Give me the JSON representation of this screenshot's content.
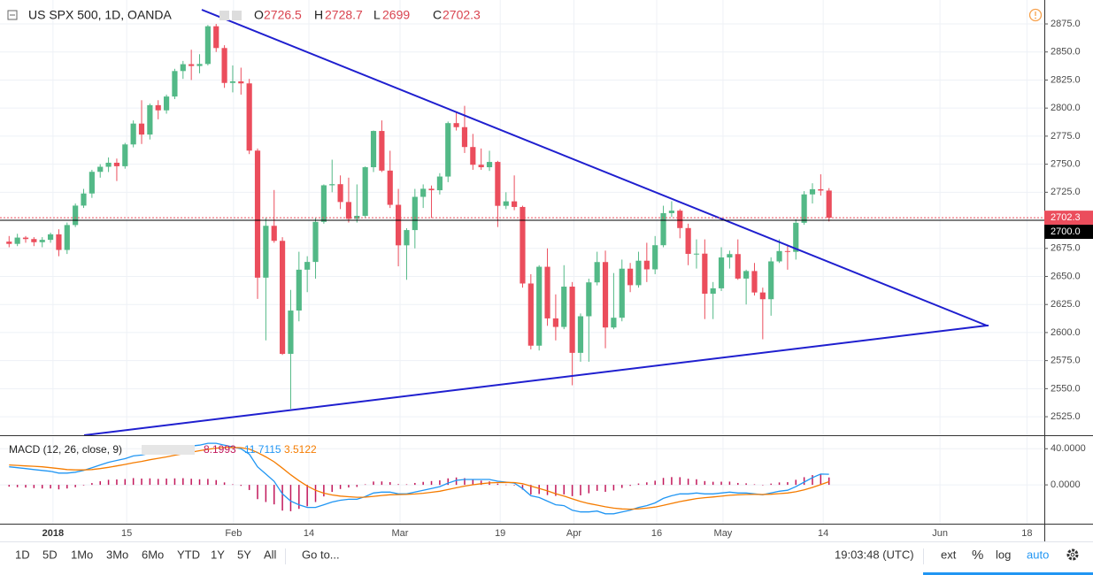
{
  "chart_data": {
    "type": "candlestick",
    "title": "US SPX 500, 1D, OANDA",
    "ohlc_labels": [
      "O",
      "H",
      "L",
      "C"
    ],
    "up_color": "#53b987",
    "down_color": "#eb4d5c",
    "open": [
      2681,
      2679.0,
      2684.6,
      2683.3,
      2680.5,
      2682.6,
      2687.5,
      2673.6,
      2695.8,
      2713.1,
      2723.9,
      2743.2,
      2747.7,
      2751.3,
      2748.2,
      2767.6,
      2786.2,
      2776.4,
      2802.6,
      2798.0,
      2810.3,
      2833.0,
      2839.1,
      2837.5,
      2839.3,
      2872.9,
      2853.5,
      2822.4,
      2823.8,
      2822.0,
      2762.1,
      2648.9,
      2695.1,
      2681.7,
      2581.0,
      2619.6,
      2656.0,
      2662.9,
      2698.6,
      2731.2,
      2732.2,
      2716.3,
      2701.3,
      2704.0,
      2747.3,
      2779.6,
      2744.3,
      2713.8,
      2677.7,
      2691.3,
      2720.9,
      2728.1,
      2726.8,
      2739.0,
      2786.6,
      2783.0,
      2765.3,
      2749.5,
      2747.3,
      2752.0,
      2712.9,
      2716.9,
      2711.9,
      2643.7,
      2588.3,
      2658.6,
      2612.6,
      2605.0,
      2640.9,
      2581.9,
      2614.5,
      2644.7,
      2662.8,
      2604.5,
      2613.2,
      2656.9,
      2642.2,
      2664.0,
      2656.3,
      2677.8,
      2706.4,
      2708.6,
      2693.1,
      2670.1,
      2670.3,
      2634.6,
      2639.4,
      2666.9,
      2669.9,
      2648.1,
      2654.8,
      2635.7,
      2629.7,
      2663.4,
      2672.6,
      2671.9,
      2697.8,
      2723.1,
      2727.7,
      2726.5
    ],
    "high": [
      2686,
      2688,
      2686,
      2685,
      2685,
      2689,
      2692,
      2698,
      2715,
      2728,
      2745,
      2750,
      2756,
      2755,
      2769,
      2789,
      2807,
      2804,
      2807,
      2812,
      2835,
      2842,
      2852,
      2848,
      2874,
      2875,
      2856,
      2838,
      2836,
      2826,
      2764,
      2702,
      2727,
      2685,
      2638,
      2672,
      2668,
      2702,
      2732,
      2754,
      2740,
      2738,
      2732,
      2748,
      2780,
      2789,
      2762,
      2728,
      2693,
      2728,
      2732,
      2731,
      2742,
      2788,
      2797,
      2802,
      2777,
      2764,
      2762,
      2753,
      2725,
      2740,
      2713,
      2652,
      2660,
      2675,
      2634,
      2660,
      2645,
      2617,
      2648,
      2672,
      2673,
      2653,
      2665,
      2662,
      2672,
      2680,
      2686,
      2713,
      2717,
      2710,
      2697,
      2683,
      2683,
      2645,
      2676,
      2673,
      2683,
      2656,
      2662,
      2640,
      2667,
      2683,
      2677,
      2701,
      2726,
      2733,
      2741,
      2728.7
    ],
    "low": [
      2676,
      2677,
      2680,
      2677,
      2676,
      2680,
      2668,
      2670,
      2694,
      2711,
      2720,
      2738,
      2743,
      2735,
      2746,
      2765,
      2768,
      2772,
      2790,
      2795,
      2808,
      2826,
      2825,
      2831,
      2838,
      2850,
      2818,
      2814,
      2812,
      2759,
      2630,
      2593,
      2680,
      2580,
      2532,
      2610,
      2636,
      2648,
      2697,
      2725,
      2710,
      2698,
      2698,
      2702,
      2743,
      2743,
      2711,
      2659,
      2647,
      2675,
      2711,
      2702,
      2723,
      2734,
      2780,
      2760,
      2745,
      2745,
      2744,
      2694,
      2710,
      2709,
      2640,
      2585,
      2584,
      2606,
      2593,
      2603,
      2553,
      2574,
      2574,
      2642,
      2586,
      2603,
      2610,
      2636,
      2640,
      2645,
      2652,
      2676,
      2703,
      2684,
      2660,
      2657,
      2612,
      2612,
      2637,
      2657,
      2647,
      2625,
      2633,
      2594,
      2615,
      2662,
      2656,
      2665,
      2696,
      2715,
      2722,
      2699.0
    ],
    "close": [
      2679.0,
      2684.6,
      2683.3,
      2680.5,
      2682.6,
      2687.5,
      2673.6,
      2695.8,
      2713.1,
      2723.9,
      2743.2,
      2747.7,
      2751.3,
      2748.2,
      2767.6,
      2786.2,
      2776.4,
      2802.6,
      2798.0,
      2810.3,
      2833.0,
      2839.1,
      2837.5,
      2839.3,
      2872.9,
      2853.5,
      2822.4,
      2823.8,
      2822.0,
      2762.1,
      2648.9,
      2695.1,
      2681.7,
      2581.0,
      2619.6,
      2656.0,
      2662.9,
      2698.6,
      2731.2,
      2732.2,
      2716.3,
      2701.3,
      2704.0,
      2747.3,
      2779.6,
      2744.3,
      2713.8,
      2677.7,
      2691.3,
      2720.9,
      2728.1,
      2726.8,
      2739.0,
      2786.6,
      2783.0,
      2765.3,
      2749.5,
      2747.3,
      2752.0,
      2712.9,
      2716.9,
      2711.9,
      2643.7,
      2588.3,
      2658.6,
      2612.6,
      2605.0,
      2640.9,
      2581.9,
      2614.5,
      2644.7,
      2662.8,
      2604.5,
      2613.2,
      2656.9,
      2642.2,
      2664.0,
      2656.3,
      2677.8,
      2706.4,
      2708.6,
      2693.1,
      2670.1,
      2670.3,
      2634.6,
      2639.4,
      2666.9,
      2669.9,
      2648.1,
      2654.8,
      2635.7,
      2629.7,
      2663.4,
      2672.6,
      2671.9,
      2697.8,
      2723.1,
      2727.7,
      2726.5,
      2702.3
    ],
    "xlim": [
      -1.1,
      125
    ],
    "xticks": [
      {
        "value": 5.3,
        "label": "2018"
      },
      {
        "value": 14.2,
        "label": "15"
      },
      {
        "value": 27.1,
        "label": "Feb"
      },
      {
        "value": 36.2,
        "label": "14"
      },
      {
        "value": 47.2,
        "label": "Mar"
      },
      {
        "value": 59.3,
        "label": "19"
      },
      {
        "value": 68.2,
        "label": "Apr"
      },
      {
        "value": 78.2,
        "label": "16"
      },
      {
        "value": 86.2,
        "label": "May"
      },
      {
        "value": 98.3,
        "label": "14"
      },
      {
        "value": 112.4,
        "label": "Jun"
      },
      {
        "value": 122.9,
        "label": "18"
      }
    ],
    "ylim": [
      2508.5,
      2896.3
    ],
    "yticks": [
      {
        "value": 2525,
        "label": "2525.0"
      },
      {
        "value": 2550,
        "label": "2550.0"
      },
      {
        "value": 2575,
        "label": "2575.0"
      },
      {
        "value": 2600,
        "label": "2600.0"
      },
      {
        "value": 2625,
        "label": "2625.0"
      },
      {
        "value": 2650,
        "label": "2650.0"
      },
      {
        "value": 2675,
        "label": "2675.0"
      },
      {
        "value": 2700,
        "label": "2700.0"
      },
      {
        "value": 2725,
        "label": "2725.0"
      },
      {
        "value": 2750,
        "label": "2750.0"
      },
      {
        "value": 2775,
        "label": "2775.0"
      },
      {
        "value": 2800,
        "label": "2800.0"
      },
      {
        "value": 2825,
        "label": "2825.0"
      },
      {
        "value": 2850,
        "label": "2850.0"
      },
      {
        "value": 2875,
        "label": "2875.0"
      }
    ],
    "grid": true,
    "hline": {
      "value": 2700,
      "label": "2700.0",
      "color": "#000000"
    },
    "macd": {
      "title": "MACD (12, 26, close, 9)",
      "ylim": [
        -43,
        53
      ],
      "yticks": [
        {
          "value": 40,
          "label": "40.0000"
        },
        {
          "value": 0,
          "label": "0.0000"
        }
      ],
      "histogram": {
        "color": "#c2185b",
        "values": [
          -2,
          -2.6,
          -3,
          -3.6,
          -4,
          -4,
          -5,
          -4,
          -2.6,
          -0.6,
          2,
          4,
          5.6,
          6,
          6.4,
          7.5,
          7,
          7.2,
          6.6,
          7,
          7.2,
          7.4,
          6.8,
          6.2,
          6.6,
          5.3,
          2.7,
          0.6,
          -1.1,
          -5.7,
          -15.8,
          -19,
          -21.6,
          -28.5,
          -29.2,
          -26.6,
          -23.7,
          -19,
          -12.8,
          -7.8,
          -4.6,
          -2.9,
          -2.3,
          0.6,
          3.7,
          3.8,
          3,
          0.8,
          0.6,
          2.1,
          3.3,
          4.2,
          5,
          7.2,
          8.2,
          7.4,
          5.9,
          4.7,
          3.8,
          1.4,
          0.3,
          -0.6,
          -5.3,
          -10.6,
          -10.1,
          -11.3,
          -12.2,
          -10.6,
          -12.5,
          -11.6,
          -9.3,
          -6.6,
          -7.7,
          -6.2,
          -3.4,
          -1.1,
          1.5,
          2.8,
          4.6,
          7.7,
          8.6,
          8.5,
          6.8,
          6.2,
          4.2,
          3.4,
          3.5,
          3.6,
          2.1,
          1.7,
          0.6,
          -0.3,
          1.4,
          2.7,
          3,
          5.6,
          8.5,
          10.8,
          11.8,
          8.1993
        ]
      },
      "line": {
        "color": "#2196f3",
        "values": [
          20,
          19,
          18,
          17,
          16,
          15,
          13,
          13,
          14,
          16,
          19,
          22,
          25,
          27,
          29,
          32,
          33,
          35,
          36,
          38,
          40,
          42,
          43,
          44,
          46,
          46,
          44,
          42,
          40,
          34,
          20,
          12,
          4,
          -10,
          -18,
          -22,
          -25,
          -25,
          -22,
          -19,
          -17,
          -16,
          -16,
          -13,
          -9,
          -8,
          -8,
          -10,
          -10,
          -8,
          -6,
          -4,
          -2,
          2,
          5,
          6,
          6,
          6,
          6,
          4,
          3,
          2,
          -4,
          -12,
          -14,
          -18,
          -22,
          -23,
          -28,
          -30,
          -30,
          -29,
          -32,
          -32,
          -30,
          -28,
          -25,
          -23,
          -20,
          -15,
          -12,
          -10,
          -10,
          -9,
          -10,
          -10,
          -9,
          -8,
          -9,
          -9,
          -10,
          -11,
          -9,
          -7,
          -6,
          -2,
          3,
          8,
          12,
          11.7115
        ]
      },
      "signal": {
        "color": "#f57c00",
        "values": [
          22,
          21.6,
          21,
          20.6,
          20,
          19,
          18,
          17,
          16.6,
          16.6,
          17,
          18,
          19.4,
          21,
          22.6,
          24.5,
          26,
          27.8,
          29.4,
          31,
          32.8,
          34.6,
          36.2,
          37.8,
          39.4,
          40.7,
          41.3,
          41.4,
          41.1,
          39.7,
          35.8,
          31,
          25.6,
          18.5,
          11.2,
          4.6,
          -1.3,
          -6,
          -9.2,
          -11.2,
          -12.4,
          -13.1,
          -13.7,
          -13.6,
          -12.7,
          -11.8,
          -11,
          -10.8,
          -10.6,
          -10.1,
          -9.3,
          -8.2,
          -7,
          -5.2,
          -3.2,
          -1.4,
          0.1,
          1.3,
          2.2,
          2.6,
          2.7,
          2.6,
          1.3,
          -1.4,
          -3.9,
          -6.7,
          -9.8,
          -12.4,
          -15.5,
          -18.4,
          -20.7,
          -22.4,
          -24.3,
          -25.8,
          -26.6,
          -26.9,
          -26.5,
          -25.8,
          -24.6,
          -22.7,
          -20.6,
          -18.5,
          -16.8,
          -15.2,
          -14.2,
          -13.4,
          -12.5,
          -11.6,
          -11.1,
          -10.7,
          -10.6,
          -10.7,
          -10.4,
          -9.7,
          -9,
          -7.6,
          -5.5,
          -2.8,
          0.2,
          3.5122
        ]
      }
    },
    "toolbar": {
      "ranges": [
        "1D",
        "5D",
        "1Mo",
        "3Mo",
        "6Mo",
        "YTD",
        "1Y",
        "5Y",
        "All"
      ],
      "goto": "Go to...",
      "clock": "19:03:48 (UTC)",
      "options": [
        "ext",
        "%",
        "log",
        "auto"
      ]
    }
  }
}
